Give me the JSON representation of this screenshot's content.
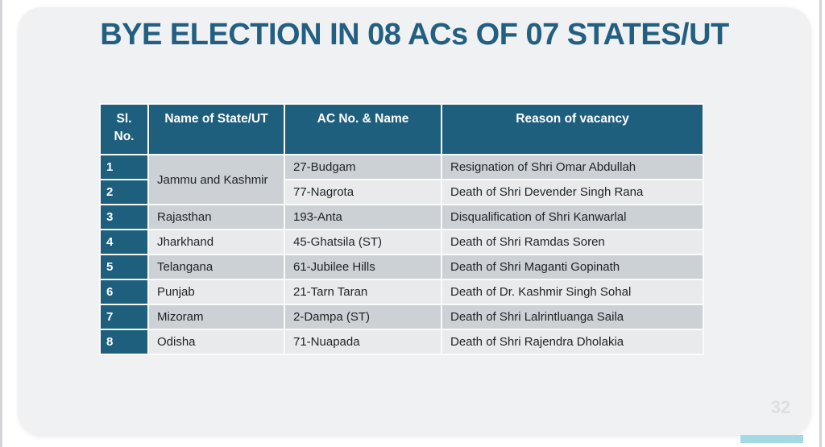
{
  "slide": {
    "title": "BYE ELECTION IN 08 ACs OF 07 STATES/UT",
    "page_number": "32"
  },
  "colors": {
    "header_teal": "#1e5f7e",
    "title_teal": "#235f81",
    "row_odd_gray": "#ccd1d5",
    "row_even_gray": "#e8eaec",
    "card_background": "#f0f1f2",
    "accent_bar_teal": "#a5dae2"
  },
  "table": {
    "headers": {
      "sl_no": "Sl.\nNo.",
      "state": "Name of State/UT",
      "ac": "AC No. & Name",
      "reason": "Reason of vacancy"
    },
    "rows": [
      {
        "sl": "1",
        "state": "Jammu and Kashmir",
        "state_rowspan": 2,
        "ac": "27-Budgam",
        "reason": "Resignation of Shri Omar Abdullah"
      },
      {
        "sl": "2",
        "state": null,
        "ac": "77-Nagrota",
        "reason": "Death of Shri Devender Singh Rana"
      },
      {
        "sl": "3",
        "state": "Rajasthan",
        "ac": "193-Anta",
        "reason": "Disqualification of Shri Kanwarlal"
      },
      {
        "sl": "4",
        "state": "Jharkhand",
        "ac": "45-Ghatsila (ST)",
        "reason": "Death of Shri Ramdas Soren"
      },
      {
        "sl": "5",
        "state": "Telangana",
        "ac": "61-Jubilee Hills",
        "reason": "Death of Shri Maganti Gopinath"
      },
      {
        "sl": "6",
        "state": "Punjab",
        "ac": "21-Tarn Taran",
        "reason": "Death of Dr. Kashmir Singh Sohal"
      },
      {
        "sl": "7",
        "state": "Mizoram",
        "ac": "2-Dampa (ST)",
        "reason": "Death of Shri Lalrintluanga Saila"
      },
      {
        "sl": "8",
        "state": "Odisha",
        "ac": "71-Nuapada",
        "reason": "Death of Shri Rajendra Dholakia"
      }
    ]
  }
}
